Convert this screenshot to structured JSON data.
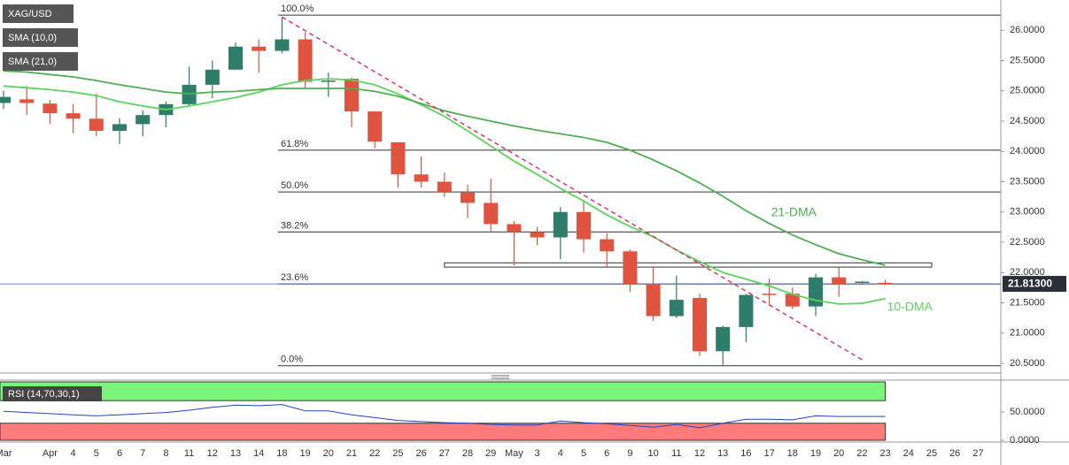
{
  "chart_data": {
    "type": "candlestick",
    "symbol": "XAG/USD",
    "categories": [
      "Mar",
      null,
      "Apr",
      "4",
      "5",
      "6",
      "7",
      "8",
      "11",
      "12",
      "13",
      "14",
      "18",
      "19",
      "20",
      "21",
      "22",
      "25",
      "26",
      "27",
      "28",
      "29",
      "May",
      "3",
      "4",
      "5",
      "6",
      "9",
      "10",
      "11",
      "12",
      "13",
      "16",
      "17",
      "18",
      "19",
      "20",
      "22",
      "23",
      "24",
      "25",
      "26",
      "27"
    ],
    "open": [
      24.8,
      24.86,
      24.79,
      24.63,
      24.54,
      24.34,
      24.45,
      24.6,
      24.78,
      25.1,
      25.35,
      25.73,
      25.66,
      25.85,
      25.15,
      25.2,
      24.66,
      24.15,
      23.62,
      23.5,
      23.32,
      23.15,
      22.8,
      22.67,
      22.58,
      23.0,
      22.55,
      22.35,
      21.8,
      21.28,
      21.58,
      20.7,
      21.1,
      21.65,
      21.65,
      21.44,
      21.92,
      21.83,
      21.83,
      null,
      null,
      null,
      null
    ],
    "high": [
      25.0,
      25.08,
      24.85,
      24.78,
      24.95,
      24.55,
      24.68,
      24.82,
      25.4,
      25.5,
      25.8,
      25.85,
      26.22,
      25.97,
      25.3,
      25.22,
      24.66,
      24.15,
      23.92,
      23.65,
      23.45,
      23.55,
      22.85,
      22.75,
      23.08,
      23.2,
      22.65,
      22.38,
      22.1,
      21.95,
      21.65,
      21.12,
      21.65,
      21.9,
      21.75,
      21.98,
      22.08,
      21.86,
      21.88,
      null,
      null,
      null,
      null
    ],
    "low": [
      24.7,
      24.6,
      24.45,
      24.3,
      24.25,
      24.12,
      24.25,
      24.4,
      24.75,
      24.88,
      25.35,
      25.3,
      25.62,
      25.05,
      24.9,
      24.4,
      24.05,
      23.4,
      23.4,
      23.25,
      22.9,
      22.68,
      22.12,
      22.45,
      22.22,
      22.33,
      22.1,
      21.68,
      21.2,
      21.25,
      20.62,
      20.45,
      20.85,
      21.45,
      21.4,
      21.28,
      21.6,
      21.82,
      21.79,
      null,
      null,
      null,
      null
    ],
    "close": [
      24.9,
      24.8,
      24.63,
      24.54,
      24.34,
      24.45,
      24.6,
      24.78,
      25.1,
      25.35,
      25.73,
      25.66,
      25.85,
      25.15,
      25.17,
      24.66,
      24.16,
      23.62,
      23.5,
      23.32,
      23.15,
      22.8,
      22.67,
      22.58,
      23.0,
      22.55,
      22.35,
      21.8,
      21.28,
      21.55,
      20.7,
      21.1,
      21.63,
      21.63,
      21.44,
      21.92,
      21.8,
      21.85,
      21.81,
      null,
      null,
      null,
      null
    ],
    "up_color": "#2e7d6b",
    "down_color": "#e0533f",
    "series": [
      {
        "name": "SMA (10,0)",
        "color": "#5ad45a",
        "annotation": "10-DMA",
        "values": [
          25.08,
          25.05,
          25.02,
          24.98,
          24.92,
          24.82,
          24.75,
          24.69,
          24.75,
          24.82,
          24.89,
          24.98,
          25.1,
          25.17,
          25.2,
          25.18,
          25.1,
          24.95,
          24.77,
          24.58,
          24.34,
          24.09,
          23.84,
          23.62,
          23.39,
          23.18,
          22.95,
          22.76,
          22.59,
          22.37,
          22.18,
          22.0,
          21.89,
          21.78,
          21.64,
          21.54,
          21.48,
          21.49,
          21.57,
          null,
          null,
          null,
          null
        ]
      },
      {
        "name": "SMA (21,0)",
        "color": "#4caf50",
        "annotation": "21-DMA",
        "values": [
          25.33,
          25.31,
          25.27,
          25.23,
          25.17,
          25.1,
          25.04,
          24.98,
          24.95,
          24.98,
          24.99,
          25.02,
          25.04,
          25.04,
          25.04,
          25.04,
          24.99,
          24.91,
          24.79,
          24.67,
          24.58,
          24.5,
          24.42,
          24.35,
          24.29,
          24.23,
          24.15,
          24.02,
          23.86,
          23.68,
          23.48,
          23.26,
          23.02,
          22.81,
          22.62,
          22.46,
          22.31,
          22.21,
          22.12,
          null,
          null,
          null,
          null
        ]
      }
    ],
    "ylim": [
      20.34,
      26.5
    ],
    "yticks": [
      {
        "value": 20.5,
        "label": "20.5000"
      },
      {
        "value": 21,
        "label": "21.0000"
      },
      {
        "value": 21.5,
        "label": "21.5000"
      },
      {
        "value": 22,
        "label": "22.0000"
      },
      {
        "value": 22.5,
        "label": "22.5000"
      },
      {
        "value": 23,
        "label": "23.0000"
      },
      {
        "value": 23.5,
        "label": "23.5000"
      },
      {
        "value": 24,
        "label": "24.0000"
      },
      {
        "value": 24.5,
        "label": "24.5000"
      },
      {
        "value": 25,
        "label": "25.0000"
      },
      {
        "value": 25.5,
        "label": "25.5000"
      },
      {
        "value": 26,
        "label": "26.0000"
      }
    ],
    "last_price": 21.813,
    "last_price_label": "21.81300",
    "fibonacci": {
      "labels": [
        "100.0%",
        "61.8%",
        "50.0%",
        "38.2%",
        "23.6%",
        "0.0%"
      ],
      "prices": [
        26.25,
        24.02,
        23.33,
        22.67,
        21.81,
        20.46
      ]
    },
    "trend_line": {
      "x": [
        12,
        37
      ],
      "y": [
        26.22,
        20.56
      ],
      "color": "#e0336a"
    },
    "resistance_zone": {
      "x": [
        19,
        40
      ],
      "ylim": [
        22.09,
        22.16
      ]
    },
    "rsi": {
      "name": "RSI (14,70,30,1)",
      "color": "#2340c8",
      "values": [
        51,
        49,
        47,
        45,
        43,
        45,
        47,
        49,
        53,
        58,
        62,
        61,
        63,
        52,
        52,
        45,
        40,
        35,
        33,
        31,
        30,
        28,
        27,
        27,
        34,
        31,
        29,
        26,
        23,
        28,
        22,
        30,
        37,
        37,
        36,
        43,
        42,
        42,
        42,
        null,
        null,
        null,
        null
      ],
      "ylim": [
        0,
        103
      ],
      "yticks": [
        {
          "value": 0,
          "label": "0.0000"
        },
        {
          "value": 50,
          "label": "50.0000"
        }
      ],
      "overbought": 70,
      "oversold": 30
    }
  }
}
